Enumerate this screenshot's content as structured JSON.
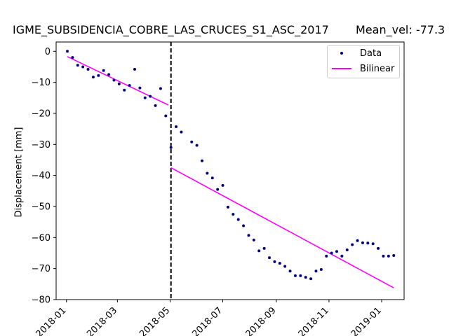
{
  "figure": {
    "title": "IGME_SUBSIDENCIA_COBRE_LAS_CRUCES_S1_ASC_2017",
    "mean_vel": "Mean_vel: -77.3"
  },
  "colors": {
    "data_points": "#00007f",
    "bilinear": "#ff00ff",
    "breakpoint": "#000000",
    "axes": "#000000"
  },
  "chart_data": {
    "type": "scatter",
    "title": "IGME_SUBSIDENCIA_COBRE_LAS_CRUCES_S1_ASC_2017",
    "annotation": "Mean_vel: -77.3",
    "xlabel": "",
    "ylabel": "Displacement [mm]",
    "xlim": [
      "2017-12-20",
      "2019-01-27"
    ],
    "ylim": [
      -80,
      3
    ],
    "x_ticks": [
      "2018-01",
      "2018-03",
      "2018-05",
      "2018-07",
      "2018-09",
      "2018-11",
      "2019-01"
    ],
    "y_ticks": [
      0,
      -10,
      -20,
      -30,
      -40,
      -50,
      -60,
      -70,
      -80
    ],
    "grid": false,
    "legend_position": "top-right",
    "legend": [
      "Data",
      "Bilinear"
    ],
    "breakpoint": "2018-05-02",
    "series": [
      {
        "name": "Data",
        "style": "dots",
        "points": [
          [
            "2018-01-02",
            0.0
          ],
          [
            "2018-01-08",
            -2.0
          ],
          [
            "2018-01-14",
            -4.5
          ],
          [
            "2018-01-20",
            -5.0
          ],
          [
            "2018-01-26",
            -5.8
          ],
          [
            "2018-02-01",
            -8.3
          ],
          [
            "2018-02-07",
            -7.8
          ],
          [
            "2018-02-13",
            -6.2
          ],
          [
            "2018-02-19",
            -7.5
          ],
          [
            "2018-02-25",
            -9.3
          ],
          [
            "2018-03-03",
            -10.5
          ],
          [
            "2018-03-09",
            -12.5
          ],
          [
            "2018-03-15",
            -11.0
          ],
          [
            "2018-03-21",
            -5.8
          ],
          [
            "2018-03-27",
            -11.8
          ],
          [
            "2018-04-02",
            -15.0
          ],
          [
            "2018-04-08",
            -14.5
          ],
          [
            "2018-04-14",
            -17.5
          ],
          [
            "2018-04-20",
            -12.0
          ],
          [
            "2018-04-26",
            -20.8
          ],
          [
            "2018-05-02",
            -31.0
          ],
          [
            "2018-05-08",
            -24.3
          ],
          [
            "2018-05-14",
            -26.0
          ],
          [
            "2018-05-26",
            -29.2
          ],
          [
            "2018-06-01",
            -30.3
          ],
          [
            "2018-06-07",
            -35.3
          ],
          [
            "2018-06-13",
            -39.3
          ],
          [
            "2018-06-19",
            -40.8
          ],
          [
            "2018-06-25",
            -44.5
          ],
          [
            "2018-07-01",
            -43.2
          ],
          [
            "2018-07-07",
            -50.2
          ],
          [
            "2018-07-13",
            -52.5
          ],
          [
            "2018-07-19",
            -54.2
          ],
          [
            "2018-07-25",
            -56.2
          ],
          [
            "2018-07-31",
            -59.3
          ],
          [
            "2018-08-06",
            -60.8
          ],
          [
            "2018-08-12",
            -64.3
          ],
          [
            "2018-08-18",
            -63.5
          ],
          [
            "2018-08-24",
            -66.5
          ],
          [
            "2018-08-30",
            -67.8
          ],
          [
            "2018-09-05",
            -68.3
          ],
          [
            "2018-09-11",
            -69.3
          ],
          [
            "2018-09-17",
            -70.8
          ],
          [
            "2018-09-23",
            -72.3
          ],
          [
            "2018-09-29",
            -72.3
          ],
          [
            "2018-10-05",
            -72.8
          ],
          [
            "2018-10-11",
            -73.3
          ],
          [
            "2018-10-17",
            -70.8
          ],
          [
            "2018-10-23",
            -70.3
          ],
          [
            "2018-10-29",
            -66.0
          ],
          [
            "2018-11-04",
            -65.0
          ],
          [
            "2018-11-10",
            -64.5
          ],
          [
            "2018-11-16",
            -66.0
          ],
          [
            "2018-11-22",
            -64.0
          ],
          [
            "2018-11-28",
            -62.3
          ],
          [
            "2018-12-04",
            -61.0
          ],
          [
            "2018-12-10",
            -61.7
          ],
          [
            "2018-12-16",
            -61.8
          ],
          [
            "2018-12-22",
            -62.0
          ],
          [
            "2018-12-28",
            -63.5
          ],
          [
            "2019-01-03",
            -66.0
          ],
          [
            "2019-01-09",
            -66.0
          ],
          [
            "2019-01-15",
            -65.8
          ]
        ]
      },
      {
        "name": "Bilinear",
        "style": "line",
        "segments": [
          [
            [
              "2018-01-02",
              -1.7
            ],
            [
              "2018-04-29",
              -17.3
            ]
          ],
          [
            [
              "2018-05-02",
              -37.5
            ],
            [
              "2019-01-15",
              -76.2
            ]
          ]
        ]
      }
    ]
  }
}
